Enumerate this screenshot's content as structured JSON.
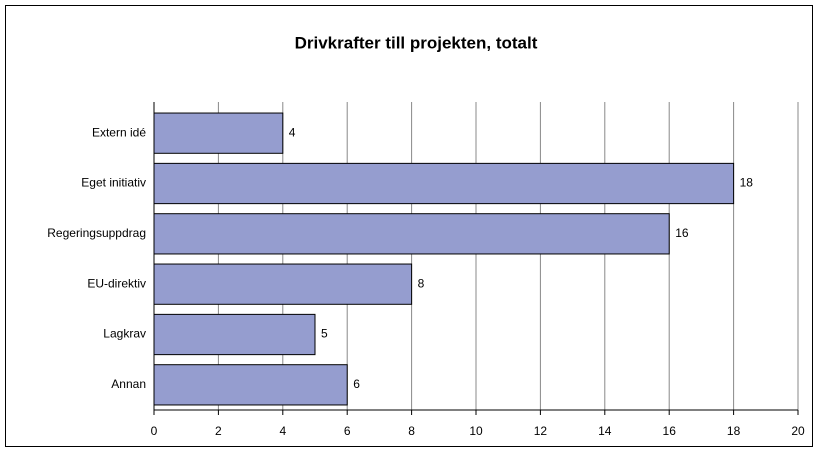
{
  "chart_data": {
    "type": "bar",
    "orientation": "horizontal",
    "title": "Drivkrafter till projekten, totalt",
    "categories": [
      "Extern idé",
      "Eget initiativ",
      "Regeringsuppdrag",
      "EU-direktiv",
      "Lagkrav",
      "Annan"
    ],
    "values": [
      4,
      18,
      16,
      8,
      5,
      6
    ],
    "color": "#959dcf",
    "xlim": [
      0,
      20
    ],
    "xticks": [
      0,
      2,
      4,
      6,
      8,
      10,
      12,
      14,
      16,
      18,
      20
    ],
    "grid": true
  }
}
